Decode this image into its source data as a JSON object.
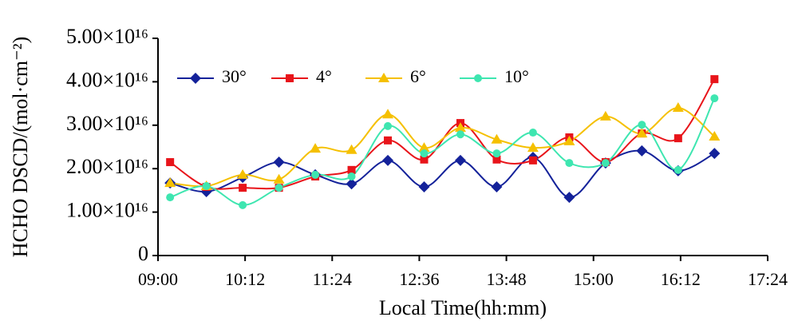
{
  "chart_data": {
    "type": "line",
    "xlabel": "Local Time(hh:mm)",
    "ylabel": "HCHO  DSCD/(mol·cm⁻²)",
    "x": [
      550,
      580,
      610,
      640,
      670,
      700,
      730,
      760,
      790,
      820,
      850,
      880,
      910,
      940,
      970,
      1000
    ],
    "series": [
      {
        "name": "30°",
        "color": "#14229a",
        "marker": "diamond",
        "values": [
          1.67e+16,
          1.47e+16,
          1.8e+16,
          2.15e+16,
          1.86e+16,
          1.65e+16,
          2.19e+16,
          1.58e+16,
          2.19e+16,
          1.58e+16,
          2.26e+16,
          1.34e+16,
          2.13e+16,
          2.41e+16,
          1.95e+16,
          2.35e+16
        ]
      },
      {
        "name": "4°",
        "color": "#e8141a",
        "marker": "square",
        "values": [
          2.15e+16,
          1.58e+16,
          1.56e+16,
          1.56e+16,
          1.82e+16,
          1.97e+16,
          2.65e+16,
          2.21e+16,
          3.05e+16,
          2.21e+16,
          2.19e+16,
          2.72e+16,
          2.15e+16,
          2.81e+16,
          2.7e+16,
          4.06e+16
        ]
      },
      {
        "name": "6°",
        "color": "#f5c000",
        "marker": "triangle",
        "values": [
          1.67e+16,
          1.6e+16,
          1.86e+16,
          1.75e+16,
          2.46e+16,
          2.43e+16,
          3.25e+16,
          2.48e+16,
          2.94e+16,
          2.67e+16,
          2.48e+16,
          2.63e+16,
          3.2e+16,
          2.81e+16,
          3.4e+16,
          2.74e+16
        ]
      },
      {
        "name": "10°",
        "color": "#3ee6b0",
        "marker": "circle",
        "values": [
          1.34e+16,
          1.6e+16,
          1.16e+16,
          1.56e+16,
          1.86e+16,
          1.82e+16,
          2.98e+16,
          2.35e+16,
          2.79e+16,
          2.35e+16,
          2.83e+16,
          2.13e+16,
          2.13e+16,
          3.01e+16,
          1.97e+16,
          3.62e+16
        ]
      }
    ],
    "xlim": [
      540,
      1044
    ],
    "xticks": [
      {
        "value": 540,
        "label": "09:00"
      },
      {
        "value": 612,
        "label": "10:12"
      },
      {
        "value": 684,
        "label": "11:24"
      },
      {
        "value": 756,
        "label": "12:36"
      },
      {
        "value": 828,
        "label": "13:48"
      },
      {
        "value": 900,
        "label": "15:00"
      },
      {
        "value": 972,
        "label": "16:12"
      },
      {
        "value": 1044,
        "label": "17:24"
      }
    ],
    "ylim": [
      0,
      5e+16
    ],
    "yticks": [
      0,
      {
        "value": 1e+16,
        "label": "1.00×10¹⁶"
      },
      {
        "value": 2e+16,
        "label": "2.00×10¹⁶"
      },
      {
        "value": 3e+16,
        "label": "3.00×10¹⁶"
      },
      {
        "value": 4e+16,
        "label": "4.00×10¹⁶"
      },
      {
        "value": 5e+16,
        "label": "5.00×10¹⁶"
      }
    ],
    "grid": false,
    "legend": "top-left",
    "smooth": true
  }
}
